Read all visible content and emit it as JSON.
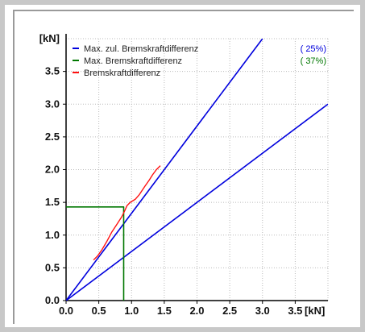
{
  "chart_data": {
    "type": "line",
    "x_unit": "[kN]",
    "y_unit": "[kN]",
    "xlim": [
      0,
      4.0
    ],
    "ylim": [
      0,
      4.0
    ],
    "x_ticks": [
      "0.0",
      "0.5",
      "1.0",
      "1.5",
      "2.0",
      "2.5",
      "3.0",
      "3.5"
    ],
    "y_ticks": [
      "0.0",
      "0.5",
      "1.0",
      "1.5",
      "2.0",
      "2.5",
      "3.0",
      "3.5"
    ],
    "grid": true,
    "legend_position": "top",
    "series": [
      {
        "name": "Max. zul. Bremskraftdifferenz",
        "percent_label": "( 25%)",
        "color": "#0000dd",
        "lines": [
          [
            [
              0,
              0
            ],
            [
              3.0,
              4.0
            ]
          ],
          [
            [
              0,
              0
            ],
            [
              4.0,
              3.0
            ]
          ]
        ]
      },
      {
        "name": "Max. Bremskraftdifferenz",
        "percent_label": "( 37%)",
        "color": "#007700",
        "lines": [
          [
            [
              0,
              1.43
            ],
            [
              0.88,
              1.43
            ],
            [
              0.88,
              0
            ]
          ]
        ]
      },
      {
        "name": "Bremskraftdifferenz",
        "color": "#ff1111",
        "lines": [
          [
            [
              0.42,
              0.62
            ],
            [
              0.48,
              0.68
            ],
            [
              0.55,
              0.78
            ],
            [
              0.62,
              0.9
            ],
            [
              0.7,
              1.05
            ],
            [
              0.78,
              1.17
            ],
            [
              0.85,
              1.28
            ],
            [
              0.9,
              1.38
            ],
            [
              0.93,
              1.45
            ],
            [
              0.98,
              1.5
            ],
            [
              1.06,
              1.55
            ],
            [
              1.12,
              1.62
            ],
            [
              1.2,
              1.74
            ],
            [
              1.27,
              1.84
            ],
            [
              1.32,
              1.92
            ],
            [
              1.38,
              2.0
            ],
            [
              1.44,
              2.06
            ]
          ]
        ]
      }
    ]
  }
}
